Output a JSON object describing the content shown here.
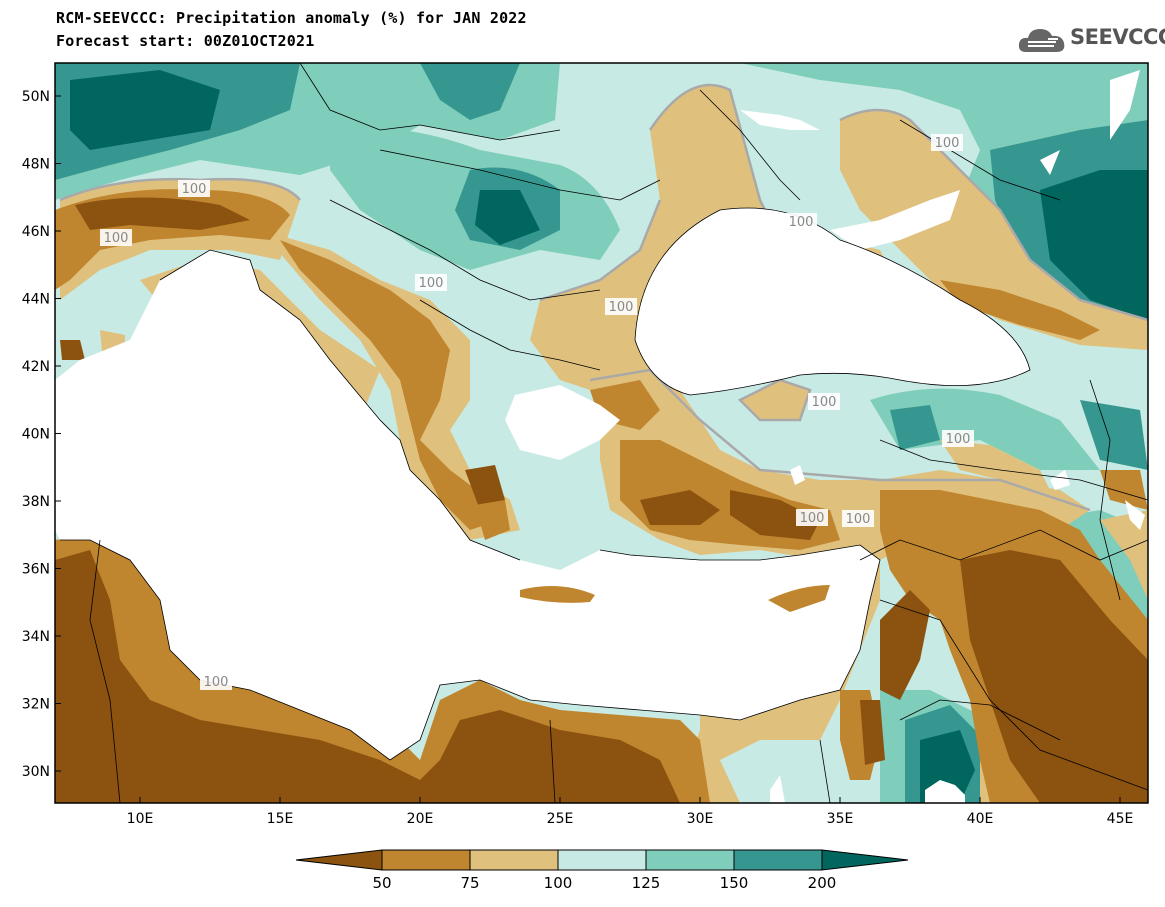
{
  "header": {
    "title": "RCM-SEEVCCC: Precipitation anomaly (%) for JAN 2022",
    "forecast": "Forecast start: 00Z01OCT2021",
    "logo_text": "SEEVCCC"
  },
  "map": {
    "lat_labels": [
      "50N",
      "48N",
      "46N",
      "44N",
      "42N",
      "40N",
      "38N",
      "36N",
      "34N",
      "32N",
      "30N"
    ],
    "lon_labels": [
      "10E",
      "15E",
      "20E",
      "25E",
      "30E",
      "35E",
      "40E",
      "45E"
    ],
    "contour_labels": [
      "100",
      "100",
      "100",
      "100",
      "100",
      "100",
      "100",
      "100",
      "100",
      "100",
      "100"
    ]
  },
  "colorbar": {
    "labels": [
      "50",
      "75",
      "100",
      "125",
      "150",
      "200"
    ],
    "colors": [
      "#8c520f",
      "#c0852f",
      "#dfc17d",
      "#c7eae5",
      "#7fcdbb",
      "#35978f",
      "#01665e"
    ]
  }
}
